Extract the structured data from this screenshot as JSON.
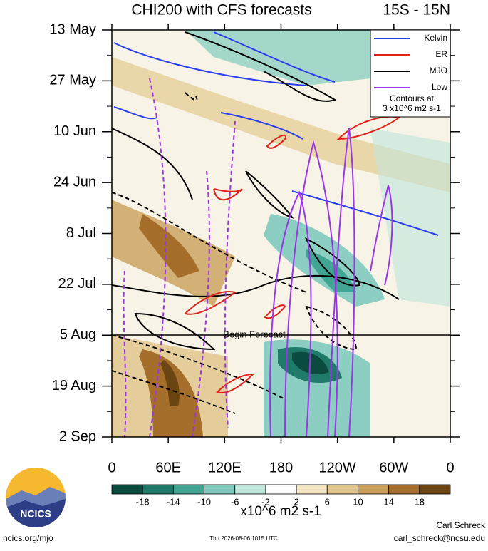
{
  "chart_data": {
    "type": "hovmoller",
    "title": "CHI200 with CFS forecasts",
    "region": "15S - 15N",
    "categories": [
      "13 May",
      "27 May",
      "10 Jun",
      "24 Jun",
      "8 Jul",
      "22 Jul",
      "5 Aug",
      "19 Aug",
      "2 Sep"
    ],
    "xlim": [
      0,
      360
    ],
    "xticks": [
      0,
      {
        "value": 60,
        "label": "60E"
      },
      {
        "value": 120,
        "label": "120E"
      },
      180,
      {
        "value": 240,
        "label": "120W"
      },
      {
        "value": 300,
        "label": "60W"
      },
      {
        "value": 360,
        "label": "0"
      }
    ],
    "annotation": "Begin Forecast",
    "legend": [
      {
        "name": "Kelvin",
        "color": "#2b3ff0"
      },
      {
        "name": "ER",
        "color": "#e0201c"
      },
      {
        "name": "MJO",
        "color": "#000000"
      },
      {
        "name": "Low",
        "color": "#9b36e8"
      }
    ],
    "contour_note": [
      "Contours at",
      "3 x10^6 m2 s-1"
    ],
    "colorbar": {
      "ticks": [
        -18,
        -14,
        -10,
        -6,
        -2,
        2,
        6,
        10,
        14,
        18
      ],
      "colors": [
        "#0b4a3e",
        "#1f7a69",
        "#42a493",
        "#7fcabc",
        "#c0e6dc",
        "#ffffff",
        "#f3e5c2",
        "#e0c68c",
        "#c99f59",
        "#a56e2b",
        "#6b4512"
      ],
      "label": "x10^6 m2 s-1"
    },
    "logo": "NCICS",
    "url": "ncics.org/mjo",
    "timestamp": "Thu 2026-08-06 1015 UTC",
    "author": "Carl Schreck",
    "email": "carl_schreck@ncsu.edu"
  }
}
